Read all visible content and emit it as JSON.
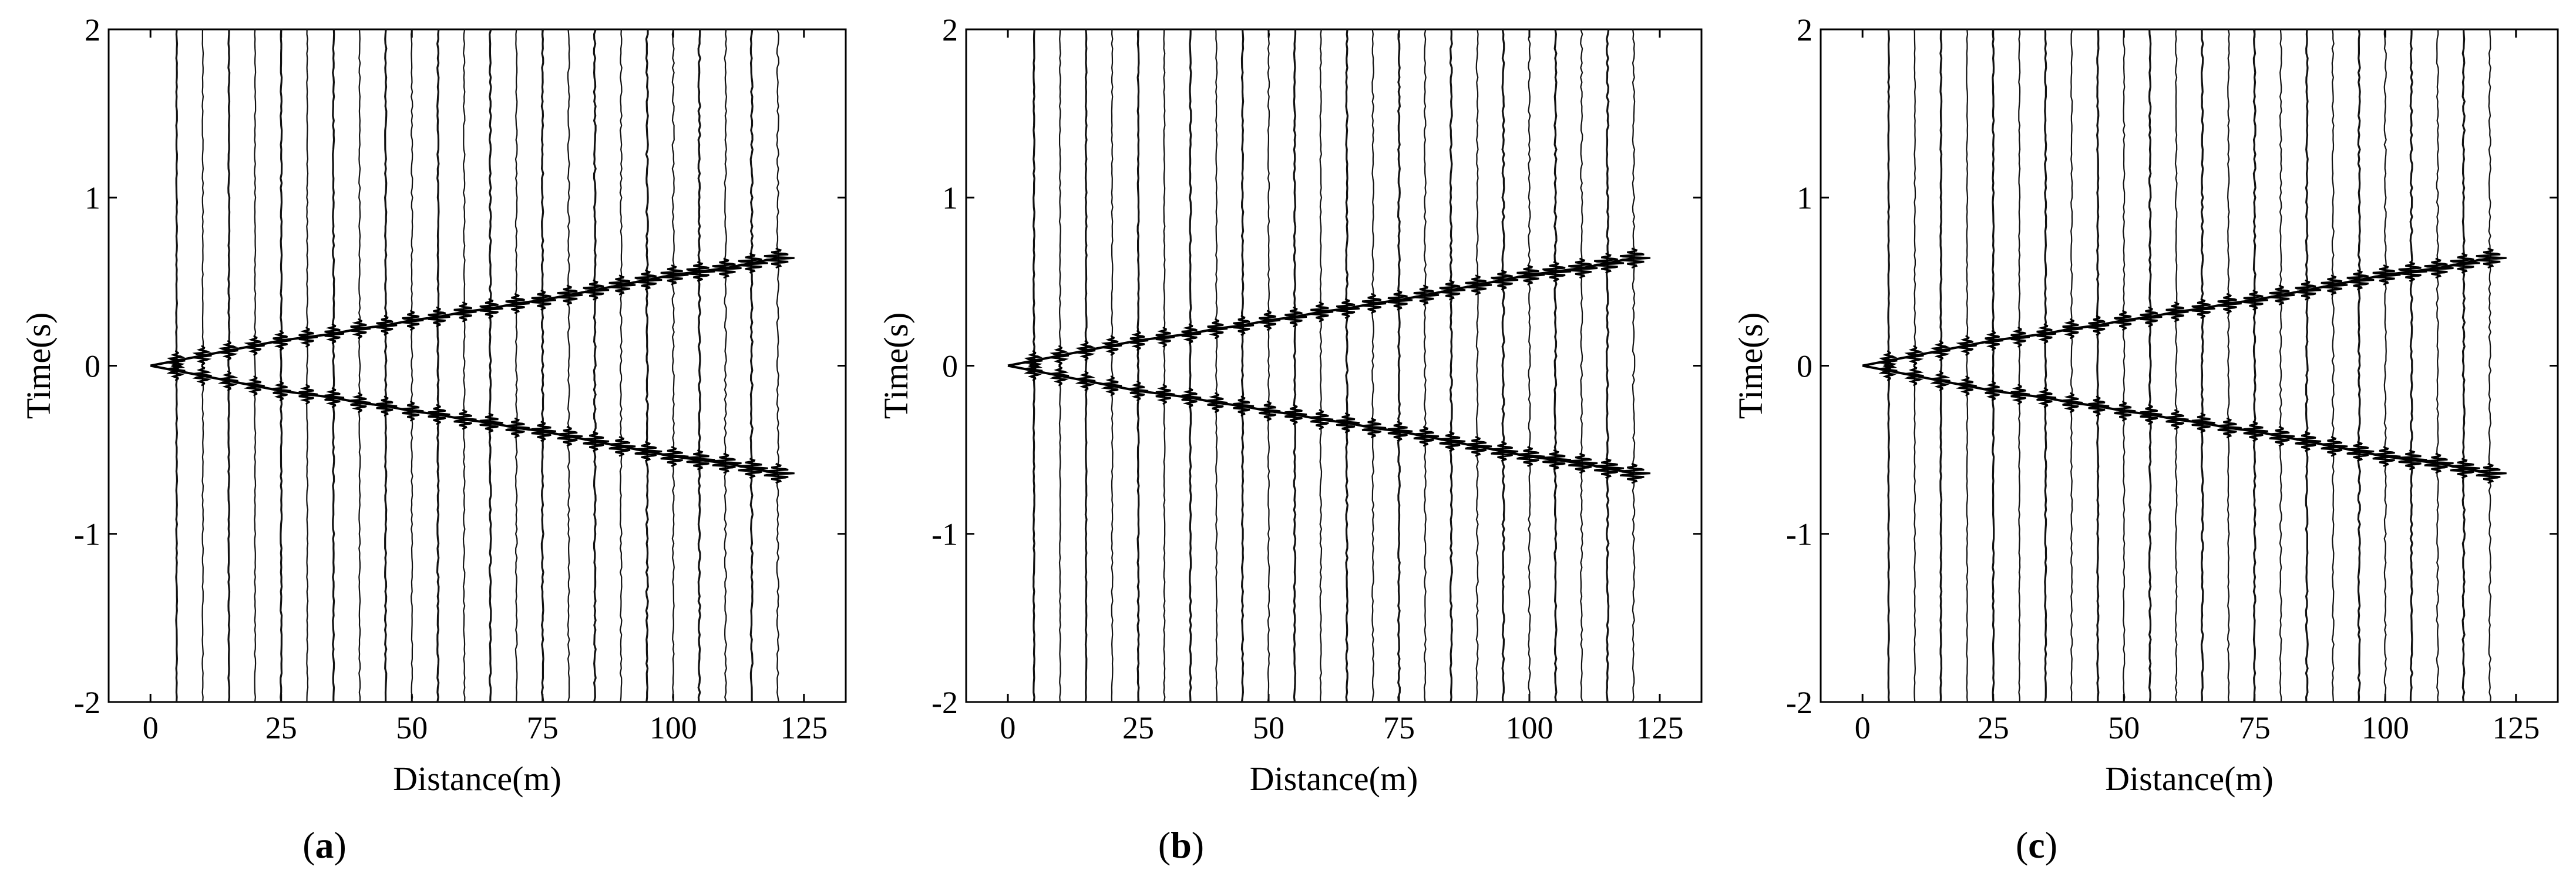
{
  "figure": {
    "panels": [
      {
        "label_open": "(",
        "label_letter": "a",
        "label_close": ")"
      },
      {
        "label_open": "(",
        "label_letter": "b",
        "label_close": ")"
      },
      {
        "label_open": "(",
        "label_letter": "c",
        "label_close": ")"
      }
    ]
  },
  "chart_data": [
    {
      "type": "line",
      "title": "",
      "xlabel": "Distance(m)",
      "ylabel": "Time(s)",
      "xlim": [
        -8,
        133
      ],
      "ylim": [
        -2,
        2
      ],
      "xticks": [
        0,
        25,
        50,
        75,
        100,
        125
      ],
      "yticks": [
        -2,
        -1,
        0,
        1,
        2
      ],
      "grid": false,
      "legend": "none",
      "trace_offsets": [
        5,
        10,
        15,
        20,
        25,
        30,
        35,
        40,
        45,
        50,
        55,
        60,
        65,
        70,
        75,
        80,
        85,
        90,
        95,
        100,
        105,
        110,
        115,
        120
      ],
      "series": [
        {
          "x": [
            5,
            10,
            15,
            20,
            25,
            30,
            35,
            40,
            45,
            50,
            55,
            60,
            65,
            70,
            75,
            80,
            85,
            90,
            95,
            100,
            105,
            110,
            115,
            120
          ],
          "y": [
            0.03,
            0.06,
            0.09,
            0.12,
            0.15,
            0.17,
            0.19,
            0.22,
            0.24,
            0.27,
            0.29,
            0.32,
            0.34,
            0.37,
            0.39,
            0.42,
            0.45,
            0.48,
            0.51,
            0.54,
            0.56,
            0.58,
            0.61,
            0.64
          ]
        },
        {
          "x": [
            5,
            10,
            15,
            20,
            25,
            30,
            35,
            40,
            45,
            50,
            55,
            60,
            65,
            70,
            75,
            80,
            85,
            90,
            95,
            100,
            105,
            110,
            115,
            120
          ],
          "y": [
            -0.03,
            -0.06,
            -0.09,
            -0.12,
            -0.15,
            -0.17,
            -0.19,
            -0.22,
            -0.24,
            -0.27,
            -0.29,
            -0.32,
            -0.34,
            -0.37,
            -0.39,
            -0.42,
            -0.45,
            -0.48,
            -0.51,
            -0.54,
            -0.56,
            -0.58,
            -0.61,
            -0.64
          ]
        }
      ]
    },
    {
      "type": "line",
      "title": "",
      "xlabel": "Distance(m)",
      "ylabel": "Time(s)",
      "xlim": [
        -8,
        133
      ],
      "ylim": [
        -2,
        2
      ],
      "xticks": [
        0,
        25,
        50,
        75,
        100,
        125
      ],
      "yticks": [
        -2,
        -1,
        0,
        1,
        2
      ],
      "grid": false,
      "legend": "none",
      "trace_offsets": [
        5,
        10,
        15,
        20,
        25,
        30,
        35,
        40,
        45,
        50,
        55,
        60,
        65,
        70,
        75,
        80,
        85,
        90,
        95,
        100,
        105,
        110,
        115,
        120
      ],
      "series": [
        {
          "x": [
            5,
            10,
            15,
            20,
            25,
            30,
            35,
            40,
            45,
            50,
            55,
            60,
            65,
            70,
            75,
            80,
            85,
            90,
            95,
            100,
            105,
            110,
            115,
            120
          ],
          "y": [
            0.03,
            0.06,
            0.09,
            0.12,
            0.15,
            0.17,
            0.19,
            0.22,
            0.24,
            0.27,
            0.29,
            0.32,
            0.34,
            0.37,
            0.39,
            0.42,
            0.45,
            0.48,
            0.51,
            0.54,
            0.56,
            0.58,
            0.61,
            0.64
          ]
        },
        {
          "x": [
            5,
            10,
            15,
            20,
            25,
            30,
            35,
            40,
            45,
            50,
            55,
            60,
            65,
            70,
            75,
            80,
            85,
            90,
            95,
            100,
            105,
            110,
            115,
            120
          ],
          "y": [
            -0.03,
            -0.06,
            -0.09,
            -0.12,
            -0.15,
            -0.17,
            -0.19,
            -0.22,
            -0.24,
            -0.27,
            -0.29,
            -0.32,
            -0.34,
            -0.37,
            -0.39,
            -0.42,
            -0.45,
            -0.48,
            -0.51,
            -0.54,
            -0.56,
            -0.58,
            -0.61,
            -0.64
          ]
        }
      ]
    },
    {
      "type": "line",
      "title": "",
      "xlabel": "Distance(m)",
      "ylabel": "Time(s)",
      "xlim": [
        -8,
        133
      ],
      "ylim": [
        -2,
        2
      ],
      "xticks": [
        0,
        25,
        50,
        75,
        100,
        125
      ],
      "yticks": [
        -2,
        -1,
        0,
        1,
        2
      ],
      "grid": false,
      "legend": "none",
      "trace_offsets": [
        5,
        10,
        15,
        20,
        25,
        30,
        35,
        40,
        45,
        50,
        55,
        60,
        65,
        70,
        75,
        80,
        85,
        90,
        95,
        100,
        105,
        110,
        115,
        120
      ],
      "series": [
        {
          "x": [
            5,
            10,
            15,
            20,
            25,
            30,
            35,
            40,
            45,
            50,
            55,
            60,
            65,
            70,
            75,
            80,
            85,
            90,
            95,
            100,
            105,
            110,
            115,
            120
          ],
          "y": [
            0.03,
            0.06,
            0.09,
            0.12,
            0.15,
            0.17,
            0.19,
            0.22,
            0.24,
            0.27,
            0.29,
            0.32,
            0.34,
            0.37,
            0.39,
            0.42,
            0.45,
            0.48,
            0.51,
            0.54,
            0.56,
            0.58,
            0.61,
            0.64
          ]
        },
        {
          "x": [
            5,
            10,
            15,
            20,
            25,
            30,
            35,
            40,
            45,
            50,
            55,
            60,
            65,
            70,
            75,
            80,
            85,
            90,
            95,
            100,
            105,
            110,
            115,
            120
          ],
          "y": [
            -0.03,
            -0.06,
            -0.09,
            -0.12,
            -0.15,
            -0.17,
            -0.19,
            -0.22,
            -0.24,
            -0.27,
            -0.29,
            -0.32,
            -0.34,
            -0.37,
            -0.39,
            -0.42,
            -0.45,
            -0.48,
            -0.51,
            -0.54,
            -0.56,
            -0.58,
            -0.61,
            -0.64
          ]
        }
      ]
    }
  ]
}
